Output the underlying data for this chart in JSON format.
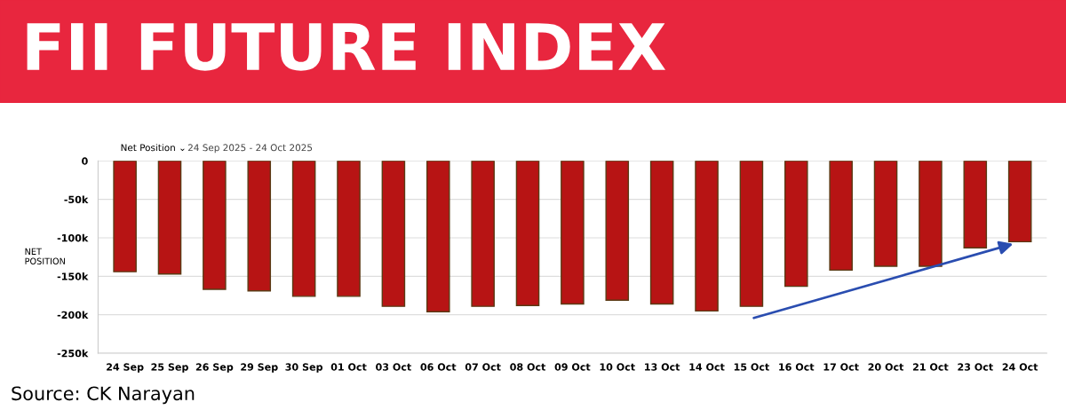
{
  "chart_data": {
    "type": "bar",
    "title": "FII FUTURE INDEX",
    "ylabel": "NET\nPOSITION",
    "categories": [
      "24 Sep",
      "25 Sep",
      "26 Sep",
      "29 Sep",
      "30 Sep",
      "01 Oct",
      "03 Oct",
      "06 Oct",
      "07 Oct",
      "08 Oct",
      "09 Oct",
      "10 Oct",
      "13 Oct",
      "14 Oct",
      "15 Oct",
      "16 Oct",
      "17 Oct",
      "20 Oct",
      "21 Oct",
      "23 Oct",
      "24 Oct"
    ],
    "series": [
      {
        "color": "#b71414",
        "values": [
          -144000,
          -147000,
          -167000,
          -169000,
          -176000,
          -176000,
          -189000,
          -196000,
          -189000,
          -188000,
          -186000,
          -181000,
          -186000,
          -195000,
          -189000,
          -163000,
          -142000,
          -137000,
          -137000,
          -113000,
          -105000
        ]
      }
    ],
    "ylim": [
      -250000,
      0
    ],
    "yticks": [
      {
        "value": 0,
        "label": "0"
      },
      {
        "value": -50000,
        "label": "-50k"
      },
      {
        "value": -100000,
        "label": "-100k"
      },
      {
        "value": -150000,
        "label": "-150k"
      },
      {
        "value": -200000,
        "label": "-200k"
      },
      {
        "value": -250000,
        "label": "-250k"
      }
    ],
    "grid": "y",
    "legend": false,
    "annotations": [
      "Net Position ⌄",
      "24 Sep 2025 - 24 Oct 2025",
      "Source: CK Narayan"
    ]
  }
}
